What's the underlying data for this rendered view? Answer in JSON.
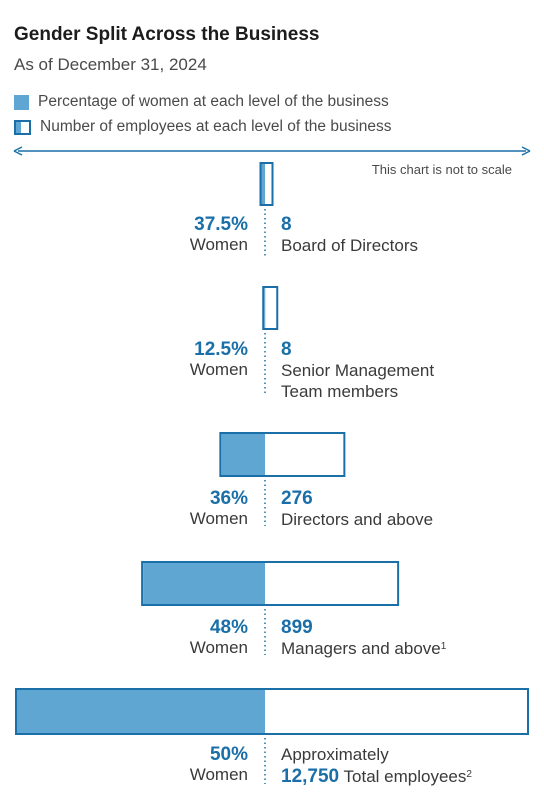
{
  "title": "Gender Split Across the Business",
  "subtitle": "As of December 31, 2024",
  "legend": {
    "women_pct": "Percentage of women at each level of the business",
    "employees": "Number of employees at each level of the business"
  },
  "note": "This chart is not to scale",
  "women_word": "Women",
  "colors": {
    "fill": "#5fa7d2",
    "outline": "#1a6fa8",
    "text_accent": "#1a6fa8"
  },
  "chart_data": {
    "type": "bar",
    "categories": [
      "Board of Directors",
      "Senior Management Team members",
      "Directors and above",
      "Managers and above",
      "Total employees"
    ],
    "series": [
      {
        "name": "Percentage of women at each level of the business",
        "values": [
          37.5,
          12.5,
          36,
          48,
          50
        ]
      },
      {
        "name": "Number of employees at each level of the business",
        "values": [
          8,
          8,
          276,
          899,
          12750
        ]
      }
    ]
  },
  "rows": [
    {
      "pct": "37.5%",
      "count": "8",
      "label1": "Board of Directors",
      "label2": "",
      "sup": ""
    },
    {
      "pct": "12.5%",
      "count": "8",
      "label1": "Senior Management",
      "label2": "Team members",
      "sup": ""
    },
    {
      "pct": "36%",
      "count": "276",
      "label1": "Directors and above",
      "label2": "",
      "sup": ""
    },
    {
      "pct": "48%",
      "count": "899",
      "label1": "Managers and above",
      "label2": "",
      "sup": "1"
    },
    {
      "pct": "50%",
      "prefix": "Approximately",
      "count": "12,750",
      "label1": "Total employees",
      "label2": "",
      "sup": "2"
    }
  ]
}
